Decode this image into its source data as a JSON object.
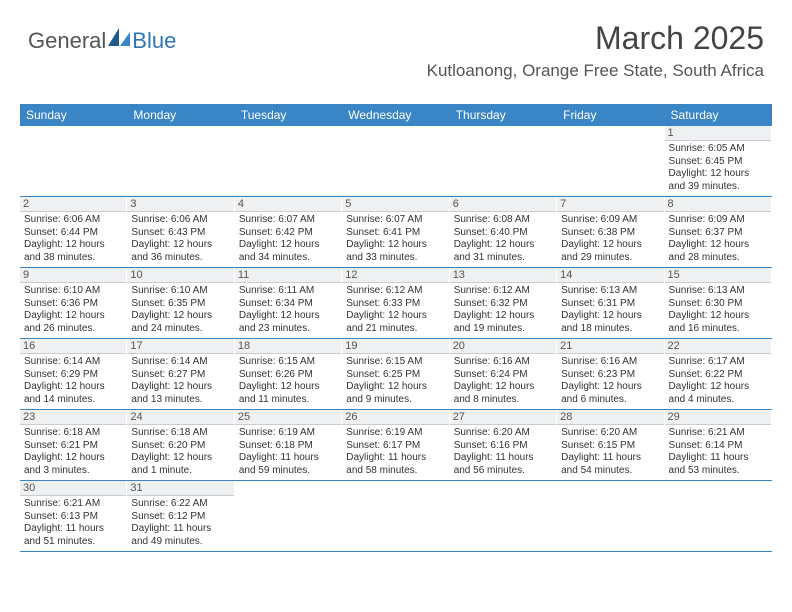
{
  "brand": {
    "general": "General",
    "blue": "Blue"
  },
  "header": {
    "month_title": "March 2025",
    "location": "Kutloanong, Orange Free State, South Africa"
  },
  "colors": {
    "header_bg": "#3a85c6",
    "header_text": "#ffffff",
    "daynum_bg": "#eef0f2",
    "daynum_border": "#c7cdd3",
    "week_border": "#3a85c6",
    "body_text": "#333333",
    "title_text": "#444444",
    "label_fontsize": 12,
    "cell_fontsize": 10
  },
  "day_labels": [
    "Sunday",
    "Monday",
    "Tuesday",
    "Wednesday",
    "Thursday",
    "Friday",
    "Saturday"
  ],
  "weeks": [
    [
      {
        "num": "",
        "empty": true
      },
      {
        "num": "",
        "empty": true
      },
      {
        "num": "",
        "empty": true
      },
      {
        "num": "",
        "empty": true
      },
      {
        "num": "",
        "empty": true
      },
      {
        "num": "",
        "empty": true
      },
      {
        "num": "1",
        "sr": "Sunrise: 6:05 AM",
        "ss": "Sunset: 6:45 PM",
        "d1": "Daylight: 12 hours",
        "d2": "and 39 minutes."
      }
    ],
    [
      {
        "num": "2",
        "sr": "Sunrise: 6:06 AM",
        "ss": "Sunset: 6:44 PM",
        "d1": "Daylight: 12 hours",
        "d2": "and 38 minutes."
      },
      {
        "num": "3",
        "sr": "Sunrise: 6:06 AM",
        "ss": "Sunset: 6:43 PM",
        "d1": "Daylight: 12 hours",
        "d2": "and 36 minutes."
      },
      {
        "num": "4",
        "sr": "Sunrise: 6:07 AM",
        "ss": "Sunset: 6:42 PM",
        "d1": "Daylight: 12 hours",
        "d2": "and 34 minutes."
      },
      {
        "num": "5",
        "sr": "Sunrise: 6:07 AM",
        "ss": "Sunset: 6:41 PM",
        "d1": "Daylight: 12 hours",
        "d2": "and 33 minutes."
      },
      {
        "num": "6",
        "sr": "Sunrise: 6:08 AM",
        "ss": "Sunset: 6:40 PM",
        "d1": "Daylight: 12 hours",
        "d2": "and 31 minutes."
      },
      {
        "num": "7",
        "sr": "Sunrise: 6:09 AM",
        "ss": "Sunset: 6:38 PM",
        "d1": "Daylight: 12 hours",
        "d2": "and 29 minutes."
      },
      {
        "num": "8",
        "sr": "Sunrise: 6:09 AM",
        "ss": "Sunset: 6:37 PM",
        "d1": "Daylight: 12 hours",
        "d2": "and 28 minutes."
      }
    ],
    [
      {
        "num": "9",
        "sr": "Sunrise: 6:10 AM",
        "ss": "Sunset: 6:36 PM",
        "d1": "Daylight: 12 hours",
        "d2": "and 26 minutes."
      },
      {
        "num": "10",
        "sr": "Sunrise: 6:10 AM",
        "ss": "Sunset: 6:35 PM",
        "d1": "Daylight: 12 hours",
        "d2": "and 24 minutes."
      },
      {
        "num": "11",
        "sr": "Sunrise: 6:11 AM",
        "ss": "Sunset: 6:34 PM",
        "d1": "Daylight: 12 hours",
        "d2": "and 23 minutes."
      },
      {
        "num": "12",
        "sr": "Sunrise: 6:12 AM",
        "ss": "Sunset: 6:33 PM",
        "d1": "Daylight: 12 hours",
        "d2": "and 21 minutes."
      },
      {
        "num": "13",
        "sr": "Sunrise: 6:12 AM",
        "ss": "Sunset: 6:32 PM",
        "d1": "Daylight: 12 hours",
        "d2": "and 19 minutes."
      },
      {
        "num": "14",
        "sr": "Sunrise: 6:13 AM",
        "ss": "Sunset: 6:31 PM",
        "d1": "Daylight: 12 hours",
        "d2": "and 18 minutes."
      },
      {
        "num": "15",
        "sr": "Sunrise: 6:13 AM",
        "ss": "Sunset: 6:30 PM",
        "d1": "Daylight: 12 hours",
        "d2": "and 16 minutes."
      }
    ],
    [
      {
        "num": "16",
        "sr": "Sunrise: 6:14 AM",
        "ss": "Sunset: 6:29 PM",
        "d1": "Daylight: 12 hours",
        "d2": "and 14 minutes."
      },
      {
        "num": "17",
        "sr": "Sunrise: 6:14 AM",
        "ss": "Sunset: 6:27 PM",
        "d1": "Daylight: 12 hours",
        "d2": "and 13 minutes."
      },
      {
        "num": "18",
        "sr": "Sunrise: 6:15 AM",
        "ss": "Sunset: 6:26 PM",
        "d1": "Daylight: 12 hours",
        "d2": "and 11 minutes."
      },
      {
        "num": "19",
        "sr": "Sunrise: 6:15 AM",
        "ss": "Sunset: 6:25 PM",
        "d1": "Daylight: 12 hours",
        "d2": "and 9 minutes."
      },
      {
        "num": "20",
        "sr": "Sunrise: 6:16 AM",
        "ss": "Sunset: 6:24 PM",
        "d1": "Daylight: 12 hours",
        "d2": "and 8 minutes."
      },
      {
        "num": "21",
        "sr": "Sunrise: 6:16 AM",
        "ss": "Sunset: 6:23 PM",
        "d1": "Daylight: 12 hours",
        "d2": "and 6 minutes."
      },
      {
        "num": "22",
        "sr": "Sunrise: 6:17 AM",
        "ss": "Sunset: 6:22 PM",
        "d1": "Daylight: 12 hours",
        "d2": "and 4 minutes."
      }
    ],
    [
      {
        "num": "23",
        "sr": "Sunrise: 6:18 AM",
        "ss": "Sunset: 6:21 PM",
        "d1": "Daylight: 12 hours",
        "d2": "and 3 minutes."
      },
      {
        "num": "24",
        "sr": "Sunrise: 6:18 AM",
        "ss": "Sunset: 6:20 PM",
        "d1": "Daylight: 12 hours",
        "d2": "and 1 minute."
      },
      {
        "num": "25",
        "sr": "Sunrise: 6:19 AM",
        "ss": "Sunset: 6:18 PM",
        "d1": "Daylight: 11 hours",
        "d2": "and 59 minutes."
      },
      {
        "num": "26",
        "sr": "Sunrise: 6:19 AM",
        "ss": "Sunset: 6:17 PM",
        "d1": "Daylight: 11 hours",
        "d2": "and 58 minutes."
      },
      {
        "num": "27",
        "sr": "Sunrise: 6:20 AM",
        "ss": "Sunset: 6:16 PM",
        "d1": "Daylight: 11 hours",
        "d2": "and 56 minutes."
      },
      {
        "num": "28",
        "sr": "Sunrise: 6:20 AM",
        "ss": "Sunset: 6:15 PM",
        "d1": "Daylight: 11 hours",
        "d2": "and 54 minutes."
      },
      {
        "num": "29",
        "sr": "Sunrise: 6:21 AM",
        "ss": "Sunset: 6:14 PM",
        "d1": "Daylight: 11 hours",
        "d2": "and 53 minutes."
      }
    ],
    [
      {
        "num": "30",
        "sr": "Sunrise: 6:21 AM",
        "ss": "Sunset: 6:13 PM",
        "d1": "Daylight: 11 hours",
        "d2": "and 51 minutes."
      },
      {
        "num": "31",
        "sr": "Sunrise: 6:22 AM",
        "ss": "Sunset: 6:12 PM",
        "d1": "Daylight: 11 hours",
        "d2": "and 49 minutes."
      },
      {
        "num": "",
        "empty": true
      },
      {
        "num": "",
        "empty": true
      },
      {
        "num": "",
        "empty": true
      },
      {
        "num": "",
        "empty": true
      },
      {
        "num": "",
        "empty": true
      }
    ]
  ]
}
